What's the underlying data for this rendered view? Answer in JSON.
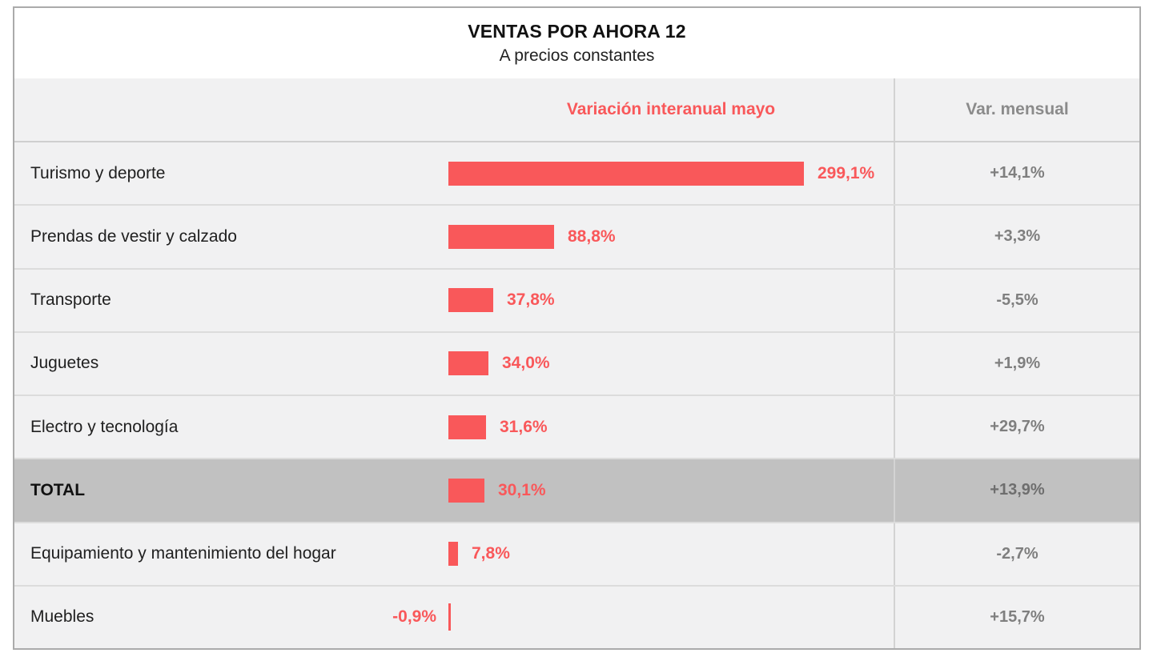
{
  "header": {
    "title": "VENTAS POR AHORA 12",
    "subtitle": "A precios constantes"
  },
  "columns": {
    "interanual": "Variación interanual mayo",
    "mensual": "Var. mensual"
  },
  "rows": [
    {
      "label": "Turismo y deporte",
      "interanual_label": "299,1%",
      "interanual": 299.1,
      "mensual": "+14,1%",
      "total": false
    },
    {
      "label": "Prendas de vestir y calzado",
      "interanual_label": "88,8%",
      "interanual": 88.8,
      "mensual": "+3,3%",
      "total": false
    },
    {
      "label": "Transporte",
      "interanual_label": "37,8%",
      "interanual": 37.8,
      "mensual": "-5,5%",
      "total": false
    },
    {
      "label": "Juguetes",
      "interanual_label": "34,0%",
      "interanual": 34.0,
      "mensual": "+1,9%",
      "total": false
    },
    {
      "label": "Electro y tecnología",
      "interanual_label": "31,6%",
      "interanual": 31.6,
      "mensual": "+29,7%",
      "total": false
    },
    {
      "label": "TOTAL",
      "interanual_label": "30,1%",
      "interanual": 30.1,
      "mensual": "+13,9%",
      "total": true
    },
    {
      "label": "Equipamiento y mantenimiento del hogar",
      "interanual_label": "7,8%",
      "interanual": 7.8,
      "mensual": "-2,7%",
      "total": false
    },
    {
      "label": "Muebles",
      "interanual_label": "-0,9%",
      "interanual": -0.9,
      "mensual": "+15,7%",
      "total": false
    }
  ],
  "colors": {
    "bar": "#f9585a",
    "table_bg": "#f1f1f2",
    "total_row_bg": "#c1c1c1",
    "value_gray": "#7f7f7f"
  },
  "chart_data": {
    "type": "bar",
    "orientation": "horizontal",
    "title": "VENTAS POR AHORA 12",
    "subtitle": "A precios constantes",
    "categories": [
      "Turismo y deporte",
      "Prendas de vestir y calzado",
      "Transporte",
      "Juguetes",
      "Electro y tecnología",
      "TOTAL",
      "Equipamiento y mantenimiento del hogar",
      "Muebles"
    ],
    "series": [
      {
        "name": "Variación interanual mayo",
        "unit": "%",
        "values": [
          299.1,
          88.8,
          37.8,
          34.0,
          31.6,
          30.1,
          7.8,
          -0.9
        ]
      },
      {
        "name": "Var. mensual",
        "unit": "%",
        "values": [
          14.1,
          3.3,
          -5.5,
          1.9,
          29.7,
          13.9,
          -2.7,
          15.7
        ]
      }
    ],
    "xlim": [
      -5,
      320
    ],
    "grid": false,
    "legend": "column headers",
    "notes": "TOTAL row highlighted with gray background; second series shown as text column"
  }
}
